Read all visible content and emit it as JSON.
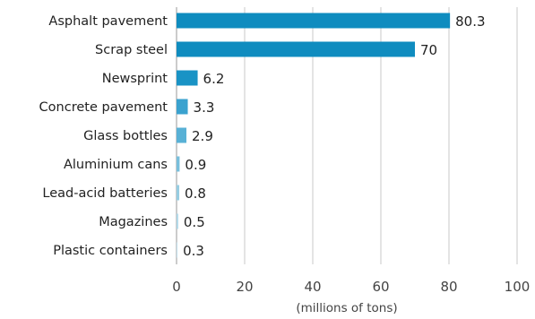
{
  "chart_data": {
    "type": "bar",
    "orientation": "horizontal",
    "categories": [
      "Asphalt pavement",
      "Scrap steel",
      "Newsprint",
      "Concrete pavement",
      "Glass bottles",
      "Aluminium cans",
      "Lead-acid batteries",
      "Magazines",
      "Plastic containers"
    ],
    "values": [
      80.3,
      70,
      6.2,
      3.3,
      2.9,
      0.9,
      0.8,
      0.5,
      0.3
    ],
    "value_labels": [
      "80.3",
      "70",
      "6.2",
      "3.3",
      "2.9",
      "0.9",
      "0.8",
      "0.5",
      "0.3"
    ],
    "bar_colors": [
      "#0f8cbf",
      "#0f8cbf",
      "#1993c5",
      "#3aa2cf",
      "#58b1d6",
      "#78bfdc",
      "#96cde2",
      "#b0d8e8",
      "#c8e3ee"
    ],
    "xlim": [
      0,
      100
    ],
    "xticks": [
      0,
      20,
      40,
      60,
      80,
      100
    ],
    "xlabel": "(millions of tons)",
    "title": "",
    "grid": "vertical"
  }
}
